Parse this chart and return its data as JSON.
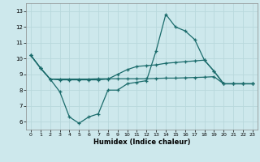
{
  "xlabel": "Humidex (Indice chaleur)",
  "bg_color": "#cde8ec",
  "grid_color": "#b8d8dc",
  "line_color": "#1a6b6b",
  "ylim": [
    5.5,
    13.5
  ],
  "xlim": [
    -0.5,
    23.5
  ],
  "yticks": [
    6,
    7,
    8,
    9,
    10,
    11,
    12,
    13
  ],
  "xticks": [
    0,
    1,
    2,
    3,
    4,
    5,
    6,
    7,
    8,
    9,
    10,
    11,
    12,
    13,
    14,
    15,
    16,
    17,
    18,
    19,
    20,
    21,
    22,
    23
  ],
  "line1_x": [
    0,
    1,
    2,
    3,
    4,
    5,
    6,
    7,
    8,
    9,
    10,
    11,
    12,
    13,
    14,
    15,
    16,
    17,
    18,
    19,
    20,
    21,
    22,
    23
  ],
  "line1_y": [
    10.2,
    9.4,
    8.7,
    7.9,
    6.3,
    5.9,
    6.3,
    6.5,
    8.0,
    8.0,
    8.4,
    8.5,
    8.6,
    10.5,
    12.8,
    12.0,
    11.75,
    11.2,
    9.9,
    9.2,
    8.4,
    8.4,
    8.4,
    8.4
  ],
  "line2_x": [
    0,
    1,
    2,
    3,
    4,
    5,
    6,
    7,
    8,
    9,
    10,
    11,
    12,
    13,
    14,
    15,
    16,
    17,
    18,
    19,
    20,
    21,
    22,
    23
  ],
  "line2_y": [
    10.2,
    9.4,
    8.7,
    8.65,
    8.65,
    8.65,
    8.65,
    8.65,
    8.7,
    9.0,
    9.3,
    9.5,
    9.55,
    9.6,
    9.7,
    9.75,
    9.8,
    9.85,
    9.9,
    9.2,
    8.4,
    8.4,
    8.4,
    8.4
  ],
  "line3_x": [
    0,
    1,
    2,
    3,
    4,
    5,
    6,
    7,
    8,
    9,
    10,
    11,
    12,
    13,
    14,
    15,
    16,
    17,
    18,
    19,
    20,
    21,
    22,
    23
  ],
  "line3_y": [
    10.2,
    9.4,
    8.7,
    8.7,
    8.7,
    8.7,
    8.7,
    8.72,
    8.72,
    8.72,
    8.72,
    8.72,
    8.72,
    8.74,
    8.76,
    8.76,
    8.78,
    8.8,
    8.82,
    8.85,
    8.4,
    8.4,
    8.4,
    8.4
  ]
}
